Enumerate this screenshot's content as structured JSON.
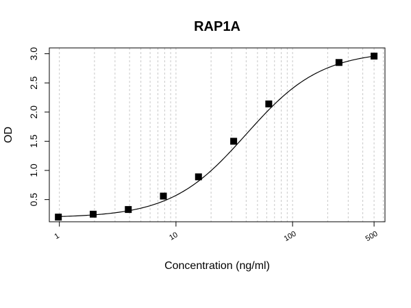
{
  "chart_data": {
    "type": "scatter",
    "title": "RAP1A",
    "xlabel": "Concentration (ng/ml)",
    "ylabel": "OD",
    "x_scale": "log",
    "xlim": [
      0.82,
      620
    ],
    "ylim": [
      0.12,
      3.1
    ],
    "grid": true,
    "x_ticks": [
      {
        "value": 1,
        "label": "1"
      },
      {
        "value": 10,
        "label": "10"
      },
      {
        "value": 100,
        "label": "100"
      },
      {
        "value": 500,
        "label": "500"
      }
    ],
    "y_ticks": [
      {
        "value": 0.5,
        "label": "0.5"
      },
      {
        "value": 1.0,
        "label": "1.0"
      },
      {
        "value": 1.5,
        "label": "1.5"
      },
      {
        "value": 2.0,
        "label": "2.0"
      },
      {
        "value": 2.5,
        "label": "2.5"
      },
      {
        "value": 3.0,
        "label": "3.0"
      }
    ],
    "points": [
      {
        "x": 0.98,
        "y": 0.2
      },
      {
        "x": 1.95,
        "y": 0.25
      },
      {
        "x": 3.9,
        "y": 0.33
      },
      {
        "x": 7.8,
        "y": 0.56
      },
      {
        "x": 15.6,
        "y": 0.89
      },
      {
        "x": 31.25,
        "y": 1.5
      },
      {
        "x": 62.5,
        "y": 2.14
      },
      {
        "x": 250,
        "y": 2.85
      },
      {
        "x": 500,
        "y": 2.96
      }
    ],
    "fit": {
      "type": "4PL",
      "bottom": 0.19,
      "top": 3.05,
      "ec50": 40,
      "hill": 1.35
    }
  }
}
